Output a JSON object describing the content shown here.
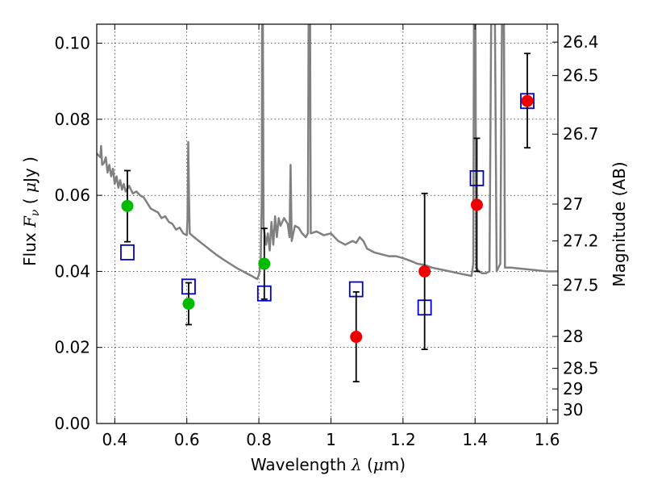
{
  "chart_data": {
    "type": "scatter",
    "xlabel_parts": [
      "Wavelength ",
      "λ",
      " (",
      "μ",
      "m)"
    ],
    "ylabel_parts": [
      "Flux ",
      "F",
      "ν",
      " ( ",
      "μ",
      "Jy )"
    ],
    "y2label": "Magnitude (AB)",
    "xlim": [
      0.35,
      1.63
    ],
    "ylim": [
      0.0,
      0.105
    ],
    "x_ticks": [
      0.4,
      0.6,
      0.8,
      1.0,
      1.2,
      1.4,
      1.6
    ],
    "x_tick_labels": [
      "0.4",
      "0.6",
      "0.8",
      "1",
      "1.2",
      "1.4",
      "1.6"
    ],
    "y_ticks": [
      0.0,
      0.02,
      0.04,
      0.06,
      0.08,
      0.1
    ],
    "y_tick_labels": [
      "0.00",
      "0.02",
      "0.04",
      "0.06",
      "0.08",
      "0.10"
    ],
    "mag_ticks": [
      {
        "label": "26.4",
        "flux": 0.1003
      },
      {
        "label": "26.5",
        "flux": 0.0915
      },
      {
        "label": "26.7",
        "flux": 0.0761
      },
      {
        "label": "27",
        "flux": 0.0577
      },
      {
        "label": "27.2",
        "flux": 0.048
      },
      {
        "label": "27.5",
        "flux": 0.0364
      },
      {
        "label": "28",
        "flux": 0.0229
      },
      {
        "label": "28.5",
        "flux": 0.0145
      },
      {
        "label": "29",
        "flux": 0.0091
      },
      {
        "label": "30",
        "flux": 0.0036
      }
    ],
    "series": [
      {
        "name": "model-spectrum",
        "style": "line",
        "color": "#808080",
        "points": [
          [
            0.35,
            0.071
          ],
          [
            0.36,
            0.07
          ],
          [
            0.362,
            0.073
          ],
          [
            0.365,
            0.068
          ],
          [
            0.37,
            0.0685
          ],
          [
            0.375,
            0.07
          ],
          [
            0.38,
            0.066
          ],
          [
            0.385,
            0.068
          ],
          [
            0.39,
            0.065
          ],
          [
            0.395,
            0.067
          ],
          [
            0.4,
            0.063
          ],
          [
            0.405,
            0.065
          ],
          [
            0.41,
            0.062
          ],
          [
            0.415,
            0.064
          ],
          [
            0.42,
            0.0615
          ],
          [
            0.425,
            0.063
          ],
          [
            0.43,
            0.061
          ],
          [
            0.44,
            0.0625
          ],
          [
            0.45,
            0.0605
          ],
          [
            0.46,
            0.061
          ],
          [
            0.47,
            0.06
          ],
          [
            0.48,
            0.0595
          ],
          [
            0.49,
            0.058
          ],
          [
            0.5,
            0.0565
          ],
          [
            0.51,
            0.056
          ],
          [
            0.52,
            0.0555
          ],
          [
            0.53,
            0.054
          ],
          [
            0.54,
            0.0545
          ],
          [
            0.55,
            0.053
          ],
          [
            0.56,
            0.0525
          ],
          [
            0.57,
            0.051
          ],
          [
            0.58,
            0.0515
          ],
          [
            0.59,
            0.05
          ],
          [
            0.6,
            0.0495
          ],
          [
            0.602,
            0.054
          ],
          [
            0.604,
            0.074
          ],
          [
            0.606,
            0.06
          ],
          [
            0.608,
            0.05
          ],
          [
            0.62,
            0.049
          ],
          [
            0.64,
            0.0475
          ],
          [
            0.66,
            0.046
          ],
          [
            0.68,
            0.0445
          ],
          [
            0.7,
            0.0432
          ],
          [
            0.72,
            0.042
          ],
          [
            0.74,
            0.0408
          ],
          [
            0.76,
            0.0398
          ],
          [
            0.78,
            0.0388
          ],
          [
            0.795,
            0.038
          ],
          [
            0.8,
            0.039
          ],
          [
            0.805,
            0.042
          ],
          [
            0.808,
            0.06
          ],
          [
            0.809,
            0.108
          ],
          [
            0.811,
            0.108
          ],
          [
            0.813,
            0.052
          ],
          [
            0.82,
            0.047
          ],
          [
            0.825,
            0.05
          ],
          [
            0.83,
            0.0455
          ],
          [
            0.835,
            0.053
          ],
          [
            0.84,
            0.047
          ],
          [
            0.845,
            0.0545
          ],
          [
            0.85,
            0.049
          ],
          [
            0.855,
            0.054
          ],
          [
            0.86,
            0.052
          ],
          [
            0.87,
            0.054
          ],
          [
            0.88,
            0.0525
          ],
          [
            0.885,
            0.049
          ],
          [
            0.888,
            0.068
          ],
          [
            0.891,
            0.048
          ],
          [
            0.9,
            0.052
          ],
          [
            0.91,
            0.0515
          ],
          [
            0.92,
            0.05
          ],
          [
            0.93,
            0.049
          ],
          [
            0.936,
            0.05
          ],
          [
            0.938,
            0.108
          ],
          [
            0.942,
            0.108
          ],
          [
            0.944,
            0.05
          ],
          [
            0.96,
            0.0505
          ],
          [
            0.98,
            0.0495
          ],
          [
            1.0,
            0.05
          ],
          [
            1.02,
            0.048
          ],
          [
            1.04,
            0.047
          ],
          [
            1.06,
            0.048
          ],
          [
            1.07,
            0.0475
          ],
          [
            1.08,
            0.049
          ],
          [
            1.09,
            0.048
          ],
          [
            1.1,
            0.046
          ],
          [
            1.12,
            0.045
          ],
          [
            1.14,
            0.0445
          ],
          [
            1.16,
            0.044
          ],
          [
            1.18,
            0.044
          ],
          [
            1.2,
            0.0435
          ],
          [
            1.22,
            0.0428
          ],
          [
            1.24,
            0.042
          ],
          [
            1.26,
            0.0417
          ],
          [
            1.28,
            0.041
          ],
          [
            1.3,
            0.0406
          ],
          [
            1.32,
            0.0402
          ],
          [
            1.34,
            0.0398
          ],
          [
            1.36,
            0.0394
          ],
          [
            1.38,
            0.039
          ],
          [
            1.39,
            0.0388
          ],
          [
            1.395,
            0.042
          ],
          [
            1.397,
            0.108
          ],
          [
            1.401,
            0.108
          ],
          [
            1.403,
            0.041
          ],
          [
            1.41,
            0.04
          ],
          [
            1.42,
            0.0395
          ],
          [
            1.43,
            0.0395
          ],
          [
            1.44,
            0.04
          ],
          [
            1.445,
            0.108
          ],
          [
            1.455,
            0.108
          ],
          [
            1.46,
            0.04
          ],
          [
            1.47,
            0.042
          ],
          [
            1.475,
            0.108
          ],
          [
            1.48,
            0.108
          ],
          [
            1.483,
            0.041
          ],
          [
            1.5,
            0.041
          ],
          [
            1.52,
            0.0408
          ],
          [
            1.54,
            0.0406
          ],
          [
            1.56,
            0.0404
          ],
          [
            1.58,
            0.0402
          ],
          [
            1.6,
            0.04
          ],
          [
            1.63,
            0.04
          ]
        ]
      },
      {
        "name": "model-bandpass",
        "style": "open-square",
        "color": "#0000cc",
        "points": [
          [
            0.435,
            0.045
          ],
          [
            0.605,
            0.036
          ],
          [
            0.815,
            0.0342
          ],
          [
            1.07,
            0.0353
          ],
          [
            1.26,
            0.0305
          ],
          [
            1.405,
            0.0645
          ],
          [
            1.545,
            0.0848
          ]
        ]
      },
      {
        "name": "observed-optical",
        "style": "filled-circle",
        "color": "#00bb00",
        "points": [
          {
            "x": 0.435,
            "y": 0.0572,
            "ylo": 0.0478,
            "yhi": 0.0665
          },
          {
            "x": 0.605,
            "y": 0.0315,
            "ylo": 0.026,
            "yhi": 0.037
          },
          {
            "x": 0.815,
            "y": 0.042,
            "ylo": 0.0327,
            "yhi": 0.0513
          }
        ]
      },
      {
        "name": "observed-infrared",
        "style": "filled-circle",
        "color": "#ee0000",
        "points": [
          {
            "x": 1.07,
            "y": 0.0228,
            "ylo": 0.011,
            "yhi": 0.0346
          },
          {
            "x": 1.26,
            "y": 0.04,
            "ylo": 0.0195,
            "yhi": 0.0605
          },
          {
            "x": 1.405,
            "y": 0.0575,
            "ylo": 0.04,
            "yhi": 0.075
          },
          {
            "x": 1.545,
            "y": 0.0848,
            "ylo": 0.0725,
            "yhi": 0.0973
          }
        ]
      }
    ]
  }
}
